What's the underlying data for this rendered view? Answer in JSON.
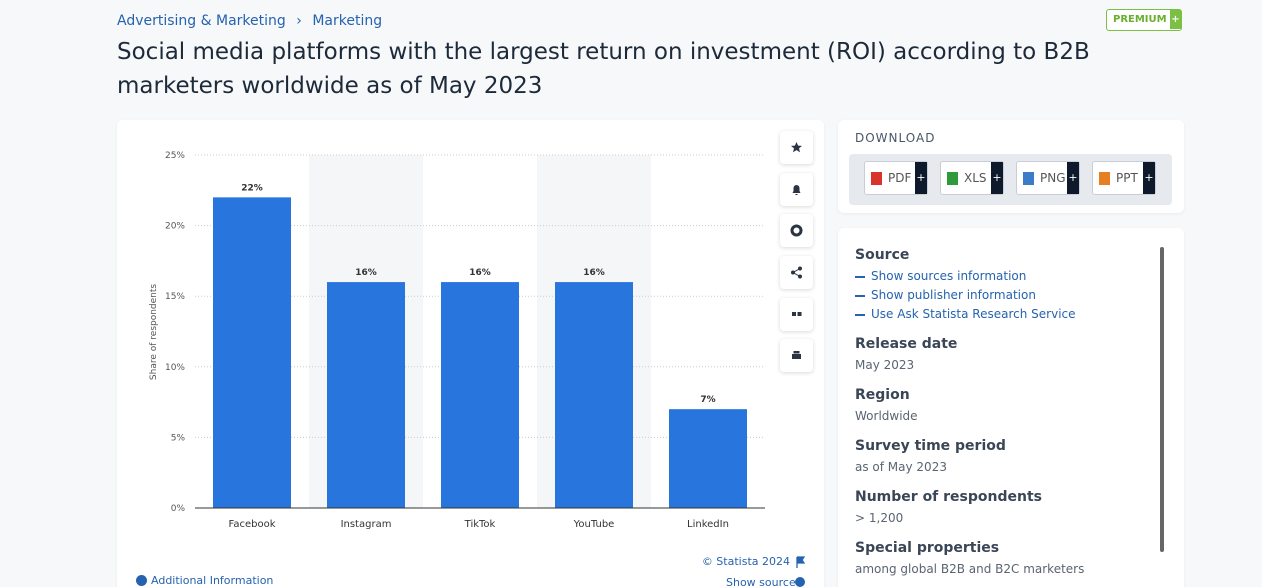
{
  "breadcrumb": [
    "Advertising & Marketing",
    "Marketing"
  ],
  "breadcrumb_separator": "›",
  "badge": "PREMIUM",
  "action_symbol": "+",
  "title": "Social media platforms with the largest return on investment (ROI) according to B2B marketers worldwide as of May 2023",
  "chart_data": {
    "type": "bar",
    "y_label": "Share of respondents",
    "categories": [
      "Facebook",
      "Instagram",
      "TikTok",
      "YouTube",
      "LinkedIn"
    ],
    "values": [
      22,
      16,
      16,
      16,
      7
    ],
    "value_labels": [
      "22%",
      "16%",
      "16%",
      "16%",
      "7%"
    ],
    "color": "#2876dd",
    "ylim": [
      0,
      25
    ],
    "yticks": [
      {
        "value": 0,
        "label": "0%"
      },
      {
        "value": 5,
        "label": "5%"
      },
      {
        "value": 10,
        "label": "10%"
      },
      {
        "value": 15,
        "label": "15%"
      },
      {
        "value": 20,
        "label": "20%"
      },
      {
        "value": 25,
        "label": "25%"
      }
    ],
    "grid": true,
    "credit": "© Statista 2024"
  },
  "chart_footer": {
    "additional_info": "Additional Information",
    "show_source": "Show source"
  },
  "download": {
    "title": "DOWNLOAD",
    "formats": [
      "PDF",
      "XLS",
      "PNG",
      "PPT"
    ]
  },
  "details": [
    {
      "heading": "Source",
      "links": [
        "Show sources information",
        "Show publisher information",
        "Use Ask Statista Research Service"
      ]
    },
    {
      "heading": "Release date",
      "value": "May 2023"
    },
    {
      "heading": "Region",
      "value": "Worldwide"
    },
    {
      "heading": "Survey time period",
      "value": "as of May 2023"
    },
    {
      "heading": "Number of respondents",
      "value": "> 1,200"
    },
    {
      "heading": "Special properties",
      "value": "among global B2B and B2C marketers"
    }
  ]
}
